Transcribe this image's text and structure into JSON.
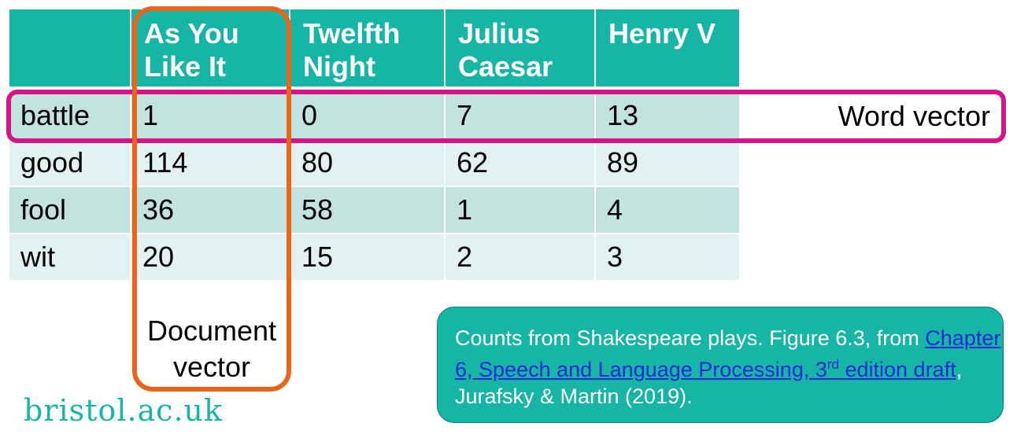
{
  "table": {
    "headers": [
      {
        "line1": "",
        "line2": ""
      },
      {
        "line1": "As You",
        "line2": "Like It"
      },
      {
        "line1": "Twelfth",
        "line2": "Night"
      },
      {
        "line1": "Julius",
        "line2": "Caesar"
      },
      {
        "line1": "Henry V",
        "line2": ""
      }
    ],
    "rows": [
      {
        "word": "battle",
        "counts": [
          "1",
          "0",
          "7",
          "13"
        ]
      },
      {
        "word": "good",
        "counts": [
          "114",
          "80",
          "62",
          "89"
        ]
      },
      {
        "word": "fool",
        "counts": [
          "36",
          "58",
          "1",
          "4"
        ]
      },
      {
        "word": "wit",
        "counts": [
          "20",
          "15",
          "2",
          "3"
        ]
      }
    ]
  },
  "labels": {
    "word_vector": "Word vector",
    "document_vector_line1": "Document",
    "document_vector_line2": "vector"
  },
  "note": {
    "text_before": "Counts from Shakespeare plays. Figure 6.3, from ",
    "link_text": "Chapter 6, Speech and Language Processing, 3",
    "link_sup": "rd",
    "link_text2": " edition draft",
    "text_after": ", Jurafsky & Martin (2019)."
  },
  "logo": "bristol.ac.uk",
  "colors": {
    "header_teal": "#16b5a5",
    "row_odd": "#c3e3df",
    "row_even": "#e2f2f0",
    "document_highlight": "#e8651b",
    "word_highlight": "#d4158a",
    "link": "#1f2bd6"
  }
}
